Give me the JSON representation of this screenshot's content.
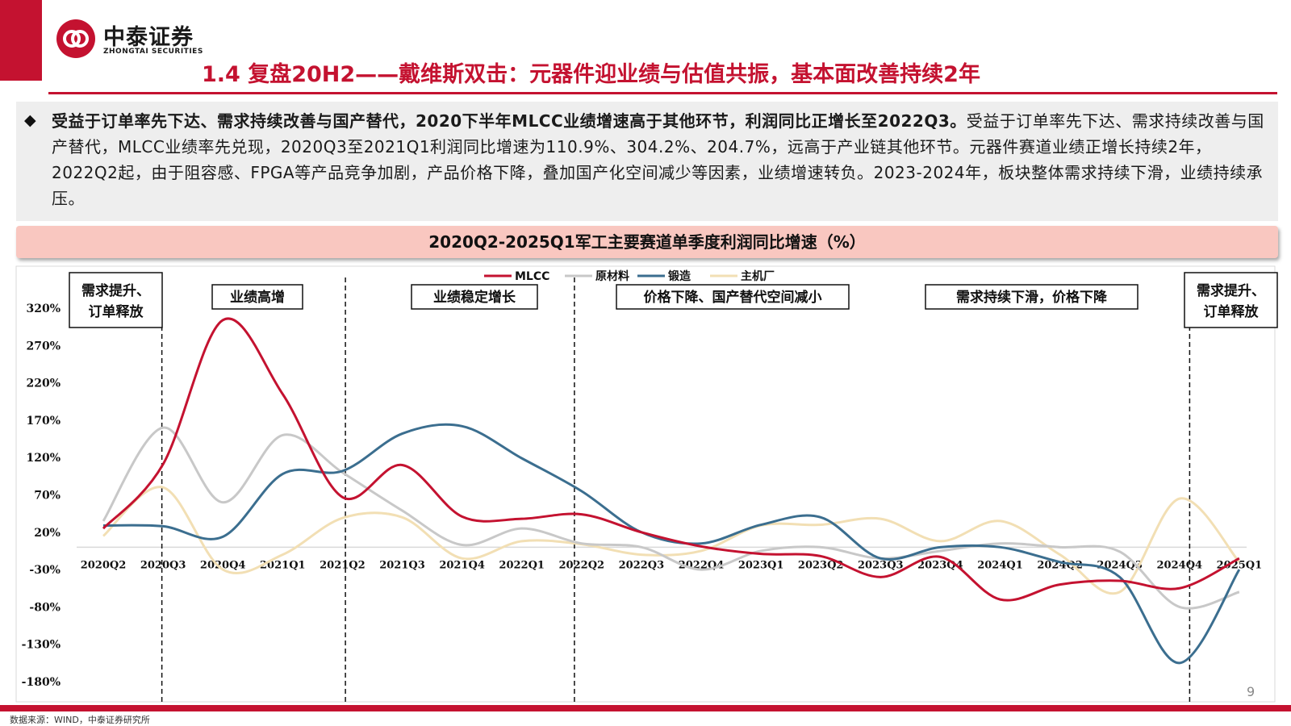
{
  "header": {
    "company_cn": "中泰证券",
    "company_en": "ZHONGTAI SECURITIES",
    "title": "1.4 复盘20H2——戴维斯双击：元器件迎业绩与估值共振，基本面改善持续2年"
  },
  "summary": {
    "bullet": "◆",
    "bold_lead": "受益于订单率先下达、需求持续改善与国产替代，2020下半年MLCC业绩增速高于其他环节，利润同比正增长至2022Q3。",
    "body": "受益于订单率先下达、需求持续改善与国产替代，MLCC业绩率先兑现，2020Q3至2021Q1利润同比增速为110.9%、304.2%、204.7%，远高于产业链其他环节。元器件赛道业绩正增长持续2年，2022Q2起，由于阻容感、FPGA等产品竞争加剧，产品价格下降，叠加国产化空间减少等因素，业绩增速转负。2023-2024年，板块整体需求持续下滑，业绩持续承压。"
  },
  "chart_title": "2020Q2-2025Q1军工主要赛道单季度利润同比增速（%）",
  "chart_data": {
    "type": "line",
    "title": "2020Q2-2025Q1军工主要赛道单季度利润同比增速（%）",
    "categories": [
      "2020Q2",
      "2020Q3",
      "2020Q4",
      "2021Q1",
      "2021Q2",
      "2021Q3",
      "2021Q4",
      "2022Q1",
      "2022Q2",
      "2022Q3",
      "2022Q4",
      "2023Q1",
      "2023Q2",
      "2023Q3",
      "2023Q4",
      "2024Q1",
      "2024Q2",
      "2024Q3",
      "2024Q4",
      "2025Q1"
    ],
    "ylim": [
      -180,
      320
    ],
    "yticks": [
      320,
      270,
      220,
      170,
      120,
      70,
      20,
      -30,
      -80,
      -130,
      -180
    ],
    "ytick_labels": [
      "320%",
      "270%",
      "220%",
      "170%",
      "120%",
      "70%",
      "20%",
      "-30%",
      "-80%",
      "-130%",
      "-180%"
    ],
    "legend_position": "top-center",
    "series": [
      {
        "name": "MLCC",
        "color": "#c41230",
        "values": [
          25,
          111,
          304,
          205,
          67,
          110,
          41,
          38,
          44,
          20,
          1,
          -9,
          -12,
          -40,
          -13,
          -70,
          -50,
          -45,
          -55,
          -15
        ]
      },
      {
        "name": "原材料",
        "color": "#c8c8c8",
        "values": [
          35,
          160,
          60,
          150,
          100,
          49,
          3,
          25,
          5,
          0,
          -30,
          -5,
          0,
          -15,
          -5,
          5,
          0,
          -6,
          -80,
          -60
        ]
      },
      {
        "name": "锻造",
        "color": "#3b6e8f",
        "values": [
          29,
          28,
          14,
          98,
          102,
          152,
          162,
          119,
          75,
          20,
          5,
          30,
          40,
          -15,
          0,
          0,
          -20,
          -40,
          -155,
          -30
        ]
      },
      {
        "name": "主机厂",
        "color": "#f2dfb4",
        "values": [
          15,
          80,
          -30,
          -10,
          39,
          40,
          -15,
          8,
          4,
          -10,
          -5,
          29,
          30,
          38,
          8,
          35,
          -10,
          -60,
          65,
          -20
        ]
      }
    ],
    "annotations": [
      "需求提升、订单释放",
      "业绩高增",
      "业绩稳定增长",
      "价格下降、国产替代空间减小",
      "需求持续下滑，价格下降",
      "需求提升、订单释放"
    ]
  },
  "footer": {
    "source": "数据来源：WIND，中泰证券研究所",
    "page_number": "9"
  }
}
